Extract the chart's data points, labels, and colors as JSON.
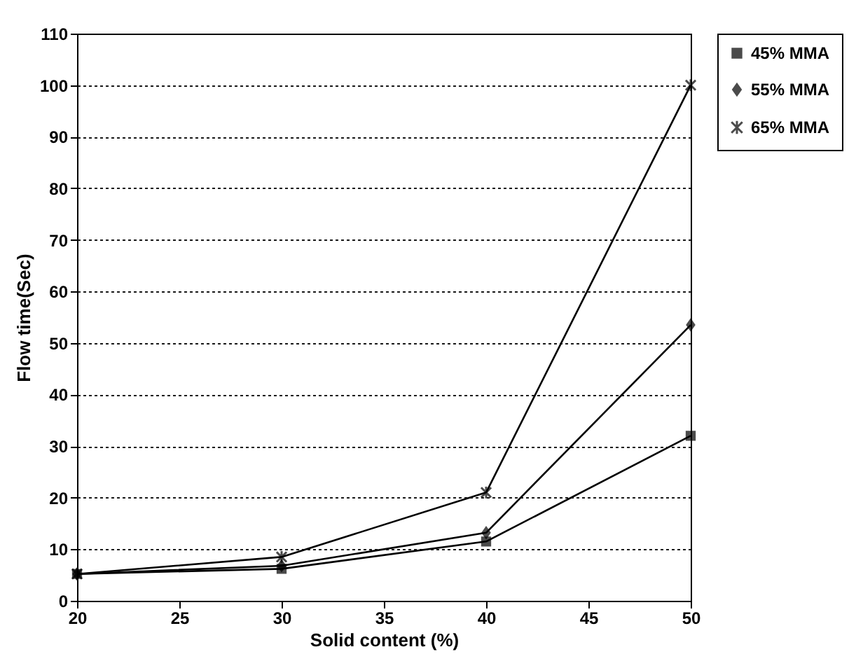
{
  "chart_data": {
    "type": "line",
    "xlabel": "Solid content (%)",
    "ylabel": "Flow time(Sec)",
    "x": [
      20,
      30,
      40,
      50
    ],
    "series": [
      {
        "name": "45% MMA",
        "color": "#000000",
        "marker": "square",
        "values": [
          5.2,
          6.2,
          11.5,
          32
        ]
      },
      {
        "name": "55% MMA",
        "color": "#000000",
        "marker": "diamond",
        "values": [
          5.2,
          6.8,
          13.2,
          53.5
        ]
      },
      {
        "name": "65% MMA",
        "color": "#000000",
        "marker": "cross",
        "values": [
          5.2,
          8.5,
          21,
          100
        ]
      }
    ],
    "xlim": [
      20,
      50
    ],
    "xticks": [
      20,
      25,
      30,
      35,
      40,
      45,
      50
    ],
    "ylim": [
      0,
      110
    ],
    "yticks": [
      0,
      10,
      20,
      30,
      40,
      50,
      60,
      70,
      80,
      90,
      100,
      110
    ],
    "grid": "y",
    "legend": "top right",
    "line_style": "solid"
  }
}
